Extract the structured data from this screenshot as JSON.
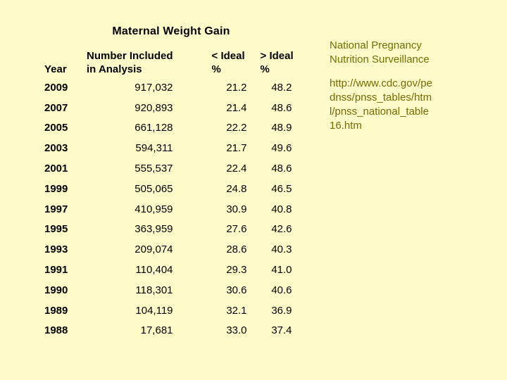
{
  "slide": {
    "title": "Maternal Weight Gain"
  },
  "table": {
    "columns": [
      {
        "line1": "",
        "line2": "Year"
      },
      {
        "line1": "Number Included",
        "line2": "in Analysis"
      },
      {
        "line1": "< Ideal",
        "line2": "%"
      },
      {
        "line1": "> Ideal",
        "line2": "%"
      }
    ],
    "rows": [
      {
        "year": "2009",
        "number": "917,032",
        "lt_ideal": "21.2",
        "gt_ideal": "48.2"
      },
      {
        "year": "2007",
        "number": "920,893",
        "lt_ideal": "21.4",
        "gt_ideal": "48.6"
      },
      {
        "year": "2005",
        "number": "661,128",
        "lt_ideal": "22.2",
        "gt_ideal": "48.9"
      },
      {
        "year": "2003",
        "number": "594,311",
        "lt_ideal": "21.7",
        "gt_ideal": "49.6"
      },
      {
        "year": "2001",
        "number": "555,537",
        "lt_ideal": "22.4",
        "gt_ideal": "48.6"
      },
      {
        "year": "1999",
        "number": "505,065",
        "lt_ideal": "24.8",
        "gt_ideal": "46.5"
      },
      {
        "year": "1997",
        "number": "410,959",
        "lt_ideal": "30.9",
        "gt_ideal": "40.8"
      },
      {
        "year": "1995",
        "number": "363,959",
        "lt_ideal": "27.6",
        "gt_ideal": "42.6"
      },
      {
        "year": "1993",
        "number": "209,074",
        "lt_ideal": "28.6",
        "gt_ideal": "40.3"
      },
      {
        "year": "1991",
        "number": "110,404",
        "lt_ideal": "29.3",
        "gt_ideal": "41.0"
      },
      {
        "year": "1990",
        "number": "118,301",
        "lt_ideal": "30.6",
        "gt_ideal": "40.6"
      },
      {
        "year": "1989",
        "number": "104,119",
        "lt_ideal": "32.1",
        "gt_ideal": "36.9"
      },
      {
        "year": "1988",
        "number": "17,681",
        "lt_ideal": "33.0",
        "gt_ideal": "37.4"
      }
    ]
  },
  "side_panel": {
    "heading_lines": [
      "National Pregnancy",
      "Nutrition Surveillance"
    ],
    "url_lines": [
      "http://www.cdc.gov/pe",
      "dnss/pnss_tables/htm",
      "l/pnss_national_table",
      "16.htm"
    ],
    "url_full": "http://www.cdc.gov/pednss/pnss_tables/html/pnss_national_table16.htm"
  },
  "colors": {
    "background": "#FFFCC9",
    "text": "#000000",
    "side_heading": "#6F7000",
    "url": "#766900"
  }
}
